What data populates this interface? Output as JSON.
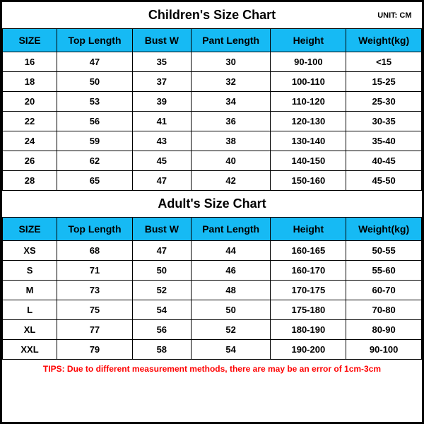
{
  "children": {
    "title": "Children's Size Chart",
    "unit": "UNIT: CM",
    "columns": [
      "SIZE",
      "Top Length",
      "Bust W",
      "Pant Length",
      "Height",
      "Weight(kg)"
    ],
    "rows": [
      [
        "16",
        "47",
        "35",
        "30",
        "90-100",
        "<15"
      ],
      [
        "18",
        "50",
        "37",
        "32",
        "100-110",
        "15-25"
      ],
      [
        "20",
        "53",
        "39",
        "34",
        "110-120",
        "25-30"
      ],
      [
        "22",
        "56",
        "41",
        "36",
        "120-130",
        "30-35"
      ],
      [
        "24",
        "59",
        "43",
        "38",
        "130-140",
        "35-40"
      ],
      [
        "26",
        "62",
        "45",
        "40",
        "140-150",
        "40-45"
      ],
      [
        "28",
        "65",
        "47",
        "42",
        "150-160",
        "45-50"
      ]
    ]
  },
  "adult": {
    "title": "Adult's Size Chart",
    "columns": [
      "SIZE",
      "Top Length",
      "Bust W",
      "Pant Length",
      "Height",
      "Weight(kg)"
    ],
    "rows": [
      [
        "XS",
        "68",
        "47",
        "44",
        "160-165",
        "50-55"
      ],
      [
        "S",
        "71",
        "50",
        "46",
        "160-170",
        "55-60"
      ],
      [
        "M",
        "73",
        "52",
        "48",
        "170-175",
        "60-70"
      ],
      [
        "L",
        "75",
        "54",
        "50",
        "175-180",
        "70-80"
      ],
      [
        "XL",
        "77",
        "56",
        "52",
        "180-190",
        "80-90"
      ],
      [
        "XXL",
        "79",
        "58",
        "54",
        "190-200",
        "90-100"
      ]
    ]
  },
  "tips": "TIPS: Due to different measurement methods, there are may be an error of 1cm-3cm",
  "colors": {
    "header_bg": "#16baf4",
    "border": "#000000",
    "tips_color": "#ff0000",
    "background": "#ffffff"
  }
}
